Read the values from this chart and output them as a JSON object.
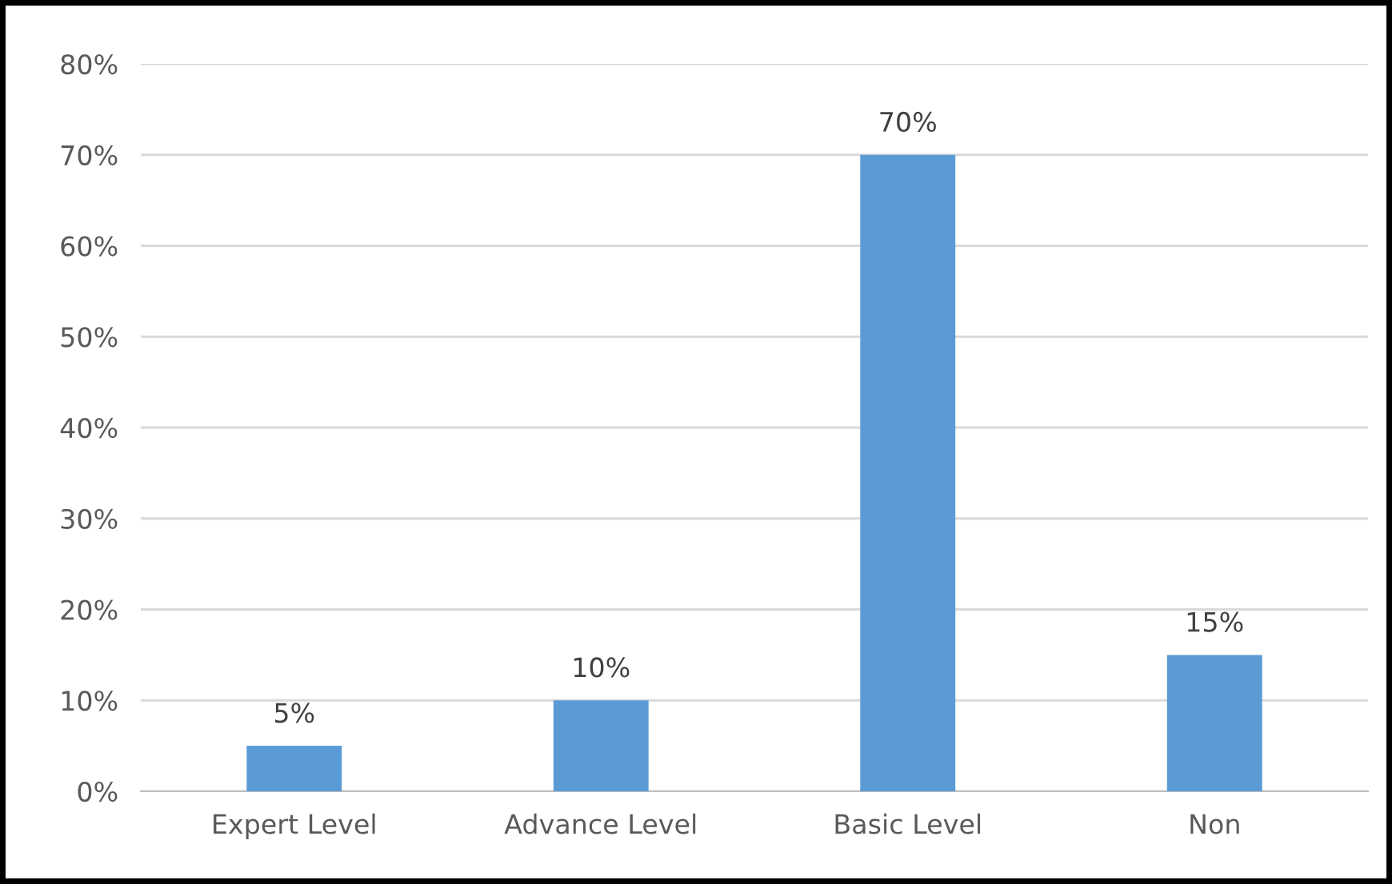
{
  "chart_data": {
    "type": "bar",
    "categories": [
      "Expert Level",
      "Advance Level",
      "Basic Level",
      "Non"
    ],
    "values": [
      5,
      10,
      70,
      15
    ],
    "value_labels": [
      "5%",
      "10%",
      "70%",
      "15%"
    ],
    "color": "#5b9bd5",
    "ylim": [
      0,
      80
    ],
    "yticks": [
      {
        "value": 0,
        "label": "0%"
      },
      {
        "value": 10,
        "label": "10%"
      },
      {
        "value": 20,
        "label": "20%"
      },
      {
        "value": 30,
        "label": "30%"
      },
      {
        "value": 40,
        "label": "40%"
      },
      {
        "value": 50,
        "label": "50%"
      },
      {
        "value": 60,
        "label": "60%"
      },
      {
        "value": 70,
        "label": "70%"
      },
      {
        "value": 80,
        "label": "80%"
      }
    ],
    "grid": "y",
    "legend": false
  }
}
